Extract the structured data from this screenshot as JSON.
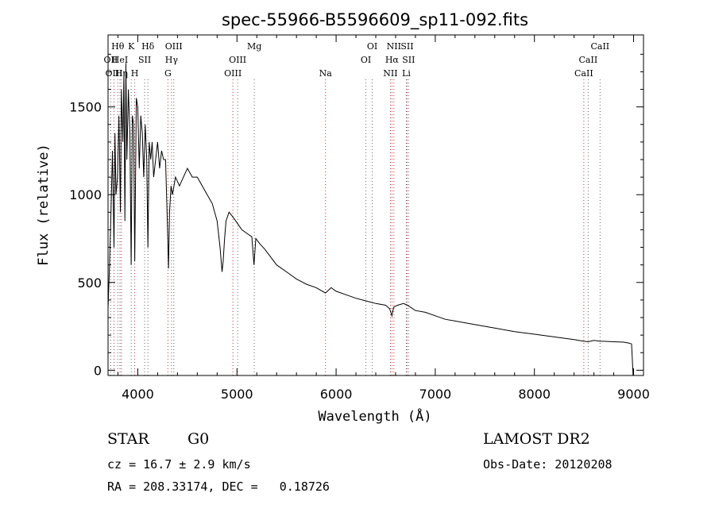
{
  "chart_data": {
    "type": "line",
    "title": "spec-55966-B5596609_sp11-092.fits",
    "xlabel": "Wavelength (Å)",
    "ylabel": "Flux (relative)",
    "xlim": [
      3700,
      9100
    ],
    "ylim": [
      -30,
      1910
    ],
    "x_ticks": [
      4000,
      5000,
      6000,
      7000,
      8000,
      9000
    ],
    "y_ticks": [
      0,
      500,
      1000,
      1500
    ],
    "grid": false,
    "series": [
      {
        "name": "spectrum",
        "x": [
          3700,
          3715,
          3730,
          3745,
          3760,
          3770,
          3780,
          3795,
          3810,
          3825,
          3835,
          3850,
          3860,
          3870,
          3880,
          3890,
          3905,
          3920,
          3933,
          3945,
          3958,
          3969,
          3985,
          4000,
          4015,
          4030,
          4045,
          4060,
          4075,
          4090,
          4102,
          4115,
          4130,
          4145,
          4160,
          4180,
          4200,
          4220,
          4240,
          4260,
          4280,
          4300,
          4310,
          4320,
          4335,
          4350,
          4380,
          4420,
          4460,
          4500,
          4550,
          4600,
          4650,
          4700,
          4750,
          4800,
          4830,
          4850,
          4861,
          4875,
          4890,
          4920,
          4950,
          5000,
          5050,
          5100,
          5150,
          5172,
          5190,
          5230,
          5280,
          5320,
          5400,
          5500,
          5600,
          5700,
          5800,
          5893,
          5950,
          6000,
          6100,
          6200,
          6300,
          6400,
          6500,
          6540,
          6563,
          6580,
          6620,
          6680,
          6720,
          6800,
          6900,
          7000,
          7100,
          7200,
          7400,
          7600,
          7800,
          8000,
          8200,
          8400,
          8500,
          8542,
          8600,
          8662,
          8700,
          8800,
          8900,
          8950,
          8980,
          8995
        ],
        "y": [
          350,
          600,
          900,
          1250,
          700,
          1350,
          1000,
          1100,
          1450,
          900,
          1600,
          1300,
          1700,
          850,
          1750,
          1200,
          1600,
          1350,
          600,
          1450,
          1400,
          620,
          1550,
          1500,
          1150,
          1450,
          1350,
          1100,
          1400,
          1200,
          700,
          1300,
          1200,
          1300,
          1100,
          1200,
          1300,
          1150,
          1250,
          1200,
          1200,
          800,
          580,
          900,
          1050,
          1000,
          1100,
          1050,
          1100,
          1150,
          1100,
          1100,
          1050,
          1000,
          950,
          850,
          700,
          560,
          620,
          750,
          850,
          900,
          880,
          840,
          800,
          780,
          760,
          600,
          750,
          720,
          690,
          660,
          600,
          560,
          520,
          490,
          470,
          440,
          470,
          450,
          430,
          410,
          395,
          380,
          370,
          350,
          310,
          360,
          370,
          380,
          370,
          340,
          330,
          310,
          290,
          280,
          260,
          240,
          220,
          205,
          190,
          175,
          165,
          162,
          170,
          165,
          165,
          162,
          160,
          155,
          150,
          -30
        ]
      }
    ],
    "lines": [
      {
        "label": "Hθ",
        "x": 3798,
        "row": 0
      },
      {
        "label": "OII",
        "x": 3727,
        "row": 1
      },
      {
        "label": "OIII",
        "x": 3760,
        "row": 2
      },
      {
        "label": "HeI",
        "x": 3820,
        "row": 1
      },
      {
        "label": "Hη",
        "x": 3835,
        "row": 2
      },
      {
        "label": "K",
        "x": 3934,
        "row": 0
      },
      {
        "label": "SII",
        "x": 4069,
        "row": 1
      },
      {
        "label": "H",
        "x": 3969,
        "row": 2
      },
      {
        "label": "Hδ",
        "x": 4102,
        "row": 0
      },
      {
        "label": "OIII",
        "x": 4363,
        "row": 0
      },
      {
        "label": "Hγ",
        "x": 4340,
        "row": 1
      },
      {
        "label": "G",
        "x": 4304,
        "row": 2
      },
      {
        "label": "Mg",
        "x": 5175,
        "row": 0
      },
      {
        "label": "OIII",
        "x": 5007,
        "row": 1
      },
      {
        "label": "OIII",
        "x": 4959,
        "row": 2
      },
      {
        "label": "Na",
        "x": 5893,
        "row": 2
      },
      {
        "label": "OI",
        "x": 6364,
        "row": 0
      },
      {
        "label": "OI",
        "x": 6300,
        "row": 1
      },
      {
        "label": "NII",
        "x": 6583,
        "row": 0
      },
      {
        "label": "SII",
        "x": 6716,
        "row": 0
      },
      {
        "label": "Hα",
        "x": 6563,
        "row": 1
      },
      {
        "label": "SII",
        "x": 6731,
        "row": 1
      },
      {
        "label": "NII",
        "x": 6548,
        "row": 2
      },
      {
        "label": "Li",
        "x": 6708,
        "row": 2
      },
      {
        "label": "CaII",
        "x": 8662,
        "row": 0
      },
      {
        "label": "CaII",
        "x": 8542,
        "row": 1
      },
      {
        "label": "CaII",
        "x": 8498,
        "row": 2
      }
    ]
  },
  "info": {
    "object_class": "STAR",
    "subclass": "G0",
    "survey": "LAMOST DR2",
    "cz": "cz = 16.7 ± 2.9 km/s",
    "obs_date": "Obs-Date: 20120208",
    "coords": "RA = 208.33174, DEC =   0.18726"
  }
}
